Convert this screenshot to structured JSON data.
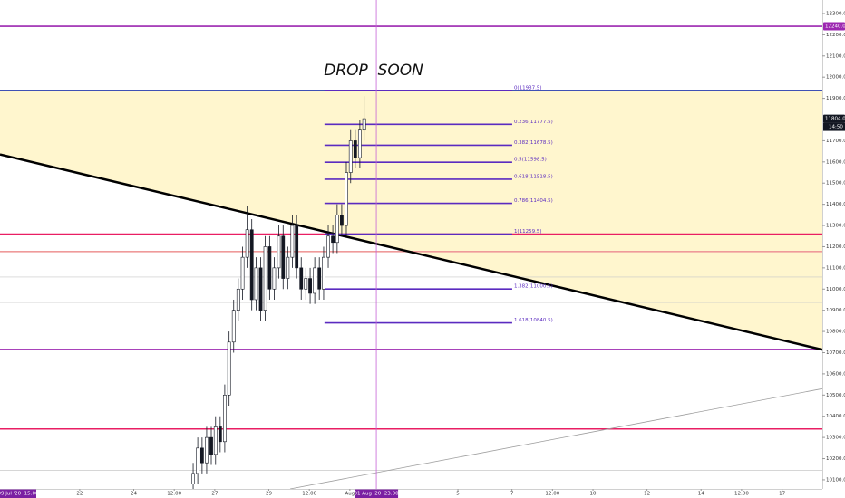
{
  "chart_data": {
    "type": "candlestick",
    "annotation": "DROP  SOON",
    "xlim": [
      19.05,
      49.49
    ],
    "ylim": [
      10057,
      12364
    ],
    "xticks": [
      {
        "value": 22,
        "label": "22"
      },
      {
        "value": 24,
        "label": "24"
      },
      {
        "value": 25.5,
        "label": "12:00"
      },
      {
        "value": 27,
        "label": "27"
      },
      {
        "value": 29,
        "label": "29"
      },
      {
        "value": 30.5,
        "label": "12:00"
      },
      {
        "value": 32,
        "label": "Aug"
      },
      {
        "value": 36,
        "label": "5"
      },
      {
        "value": 38,
        "label": "7"
      },
      {
        "value": 39.5,
        "label": "12:00"
      },
      {
        "value": 41,
        "label": "10"
      },
      {
        "value": 43,
        "label": "12"
      },
      {
        "value": 45,
        "label": "14"
      },
      {
        "value": 46.5,
        "label": "12:00"
      },
      {
        "value": 48,
        "label": "17"
      }
    ],
    "yticks": [
      {
        "value": 10100,
        "label": "10100.0"
      },
      {
        "value": 10200,
        "label": "10200.0"
      },
      {
        "value": 10300,
        "label": "10300.0"
      },
      {
        "value": 10400,
        "label": "10400.0"
      },
      {
        "value": 10500,
        "label": "10500.0"
      },
      {
        "value": 10600,
        "label": "10600.0"
      },
      {
        "value": 10700,
        "label": "10700.0"
      },
      {
        "value": 10800,
        "label": "10800.0"
      },
      {
        "value": 10900,
        "label": "10900.0"
      },
      {
        "value": 11000,
        "label": "11000.0"
      },
      {
        "value": 11100,
        "label": "11100.0"
      },
      {
        "value": 11200,
        "label": "11200.0"
      },
      {
        "value": 11300,
        "label": "11300.0"
      },
      {
        "value": 11400,
        "label": "11400.0"
      },
      {
        "value": 11500,
        "label": "11500.0"
      },
      {
        "value": 11600,
        "label": "11600.0"
      },
      {
        "value": 11700,
        "label": "11700.0"
      },
      {
        "value": 11900,
        "label": "11900.0"
      },
      {
        "value": 12000,
        "label": "12000.0"
      },
      {
        "value": 12100,
        "label": "12100.0"
      },
      {
        "value": 12200,
        "label": "12200.0"
      },
      {
        "value": 12300,
        "label": "12300.0"
      }
    ],
    "x": [
      26.2,
      26.37,
      26.53,
      26.7,
      26.87,
      27.03,
      27.2,
      27.37,
      27.53,
      27.7,
      27.87,
      28.03,
      28.2,
      28.37,
      28.53,
      28.7,
      28.87,
      29.03,
      29.2,
      29.37,
      29.53,
      29.7,
      29.87,
      30.03,
      30.2,
      30.37,
      30.53,
      30.7,
      30.87,
      31.03,
      31.2,
      31.37,
      31.53,
      31.7,
      31.87,
      32.03,
      32.2,
      32.37,
      32.53
    ],
    "open": [
      10080,
      10130,
      10250,
      10180,
      10300,
      10220,
      10350,
      10280,
      10500,
      10750,
      10900,
      11000,
      11150,
      11280,
      10950,
      11100,
      10900,
      11200,
      11000,
      11100,
      11250,
      11050,
      11150,
      11300,
      11100,
      11000,
      11050,
      10980,
      11100,
      11000,
      11150,
      11250,
      11220,
      11350,
      11300,
      11550,
      11700,
      11620,
      11750
    ],
    "high": [
      10180,
      10300,
      10300,
      10350,
      10350,
      10400,
      10400,
      10550,
      10800,
      10950,
      11050,
      11200,
      11390,
      11330,
      11150,
      11150,
      11250,
      11250,
      11150,
      11300,
      11300,
      11200,
      11350,
      11350,
      11150,
      11100,
      11100,
      11150,
      11150,
      11200,
      11300,
      11300,
      11400,
      11400,
      11600,
      11750,
      11750,
      11800,
      11910
    ],
    "low": [
      10030,
      10080,
      10130,
      10130,
      10170,
      10170,
      10230,
      10230,
      10450,
      10700,
      10850,
      10950,
      11100,
      10900,
      10900,
      10850,
      10850,
      10950,
      10950,
      11050,
      11000,
      11000,
      11100,
      11050,
      10950,
      10950,
      10930,
      10930,
      10950,
      10950,
      11100,
      11170,
      11170,
      11250,
      11250,
      11500,
      11570,
      11570,
      11700
    ],
    "close": [
      10130,
      10250,
      10180,
      10300,
      10220,
      10350,
      10280,
      10500,
      10750,
      10900,
      11000,
      11150,
      11280,
      10950,
      11100,
      10900,
      11200,
      11000,
      11100,
      11250,
      11050,
      11150,
      11300,
      11100,
      11000,
      11050,
      10980,
      11100,
      11000,
      11150,
      11250,
      11220,
      11350,
      11300,
      11550,
      11700,
      11620,
      11750,
      11804
    ],
    "candle_color": "#131722",
    "fib_x": [
      31.06,
      38.01
    ],
    "fib_color": "#5b2bc0",
    "fib_levels": [
      {
        "value": 11937.5,
        "label": "0(11937.5)"
      },
      {
        "value": 11777.5,
        "label": "0.236(11777.5)"
      },
      {
        "value": 11678.5,
        "label": "0.382(11678.5)"
      },
      {
        "value": 11598.5,
        "label": "0.5(11598.5)"
      },
      {
        "value": 11518.5,
        "label": "0.618(11518.5)"
      },
      {
        "value": 11404.5,
        "label": "0.786(11404.5)"
      },
      {
        "value": 11259.5,
        "label": "1(11259.5)"
      },
      {
        "value": 11000.5,
        "label": "1.382(11000.5)"
      },
      {
        "value": 10840.5,
        "label": "1.618(10840.5)"
      }
    ],
    "hlines": [
      {
        "value": 12240,
        "color": "#9c27b0"
      },
      {
        "value": 11937.5,
        "color": "#3f51b5"
      },
      {
        "value": 11259.5,
        "color": "#e91e63"
      },
      {
        "value": 11177,
        "color": "#ef9a9a"
      },
      {
        "value": 10715,
        "color": "#9c27b0"
      },
      {
        "value": 10340,
        "color": "#e91e63"
      },
      {
        "value": 11057,
        "color": "#c8c8c8"
      },
      {
        "value": 10937,
        "color": "#c8c8c8"
      },
      {
        "value": 10144,
        "color": "#c8c8c8"
      }
    ],
    "trendlines": [
      {
        "x": [
          19.05,
          49.49
        ],
        "y": [
          11635,
          10714
        ],
        "color": "#000000"
      },
      {
        "x": [
          29.79,
          49.49
        ],
        "y": [
          10057,
          10530
        ],
        "color": "#9e9e9e"
      }
    ],
    "zone": {
      "top": 11937.5,
      "color": "#fff4c6"
    },
    "price_labels": [
      {
        "value": 12240,
        "label": "12240.0",
        "color": "#9c27b0"
      },
      {
        "value": 11804,
        "label": "11804.0",
        "color": "#131722"
      }
    ],
    "countdown": "14:50",
    "crosshair": {
      "x": 32.98,
      "label": "01 Aug '20  23:00",
      "color": "#c561d6"
    },
    "left_label": "09 Jul '20  15:00"
  }
}
